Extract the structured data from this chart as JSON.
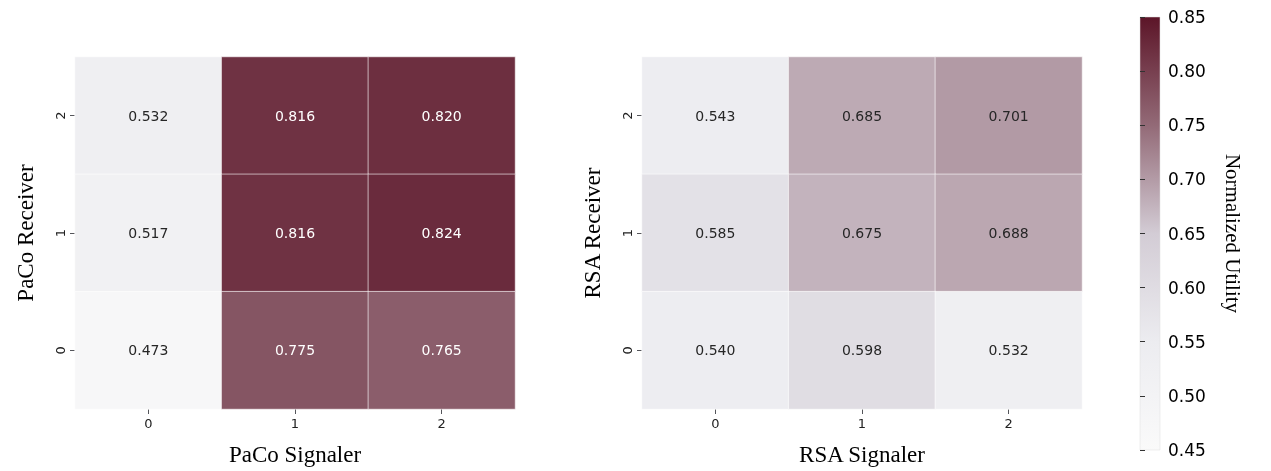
{
  "chart_data": [
    {
      "type": "heatmap",
      "xlabel": "PaCo Signaler",
      "ylabel": "PaCo Receiver",
      "categories": [
        "0",
        "1",
        "2"
      ],
      "y_categories": [
        "2",
        "1",
        "0"
      ],
      "cells": [
        [
          0.532,
          0.816,
          0.82
        ],
        [
          0.517,
          0.816,
          0.824
        ],
        [
          0.473,
          0.775,
          0.765
        ]
      ],
      "cell_labels": [
        [
          "0.532",
          "0.816",
          "0.820"
        ],
        [
          "0.517",
          "0.816",
          "0.824"
        ],
        [
          "0.473",
          "0.775",
          "0.765"
        ]
      ]
    },
    {
      "type": "heatmap",
      "xlabel": "RSA Signaler",
      "ylabel": "RSA Receiver",
      "categories": [
        "0",
        "1",
        "2"
      ],
      "y_categories": [
        "2",
        "1",
        "0"
      ],
      "cells": [
        [
          0.543,
          0.685,
          0.701
        ],
        [
          0.585,
          0.675,
          0.688
        ],
        [
          0.54,
          0.598,
          0.532
        ]
      ],
      "cell_labels": [
        [
          "0.543",
          "0.685",
          "0.701"
        ],
        [
          "0.585",
          "0.675",
          "0.688"
        ],
        [
          "0.540",
          "0.598",
          "0.532"
        ]
      ],
      "clim": [
        0.45,
        0.85
      ],
      "clabel": "Normalized Utility",
      "cticks": [
        {
          "value": 0.45,
          "label": "0.45"
        },
        {
          "value": 0.5,
          "label": "0.50"
        },
        {
          "value": 0.55,
          "label": "0.55"
        },
        {
          "value": 0.6,
          "label": "0.60"
        },
        {
          "value": 0.65,
          "label": "0.65"
        },
        {
          "value": 0.7,
          "label": "0.70"
        },
        {
          "value": 0.75,
          "label": "0.75"
        },
        {
          "value": 0.8,
          "label": "0.80"
        },
        {
          "value": 0.85,
          "label": "0.85"
        }
      ]
    }
  ]
}
